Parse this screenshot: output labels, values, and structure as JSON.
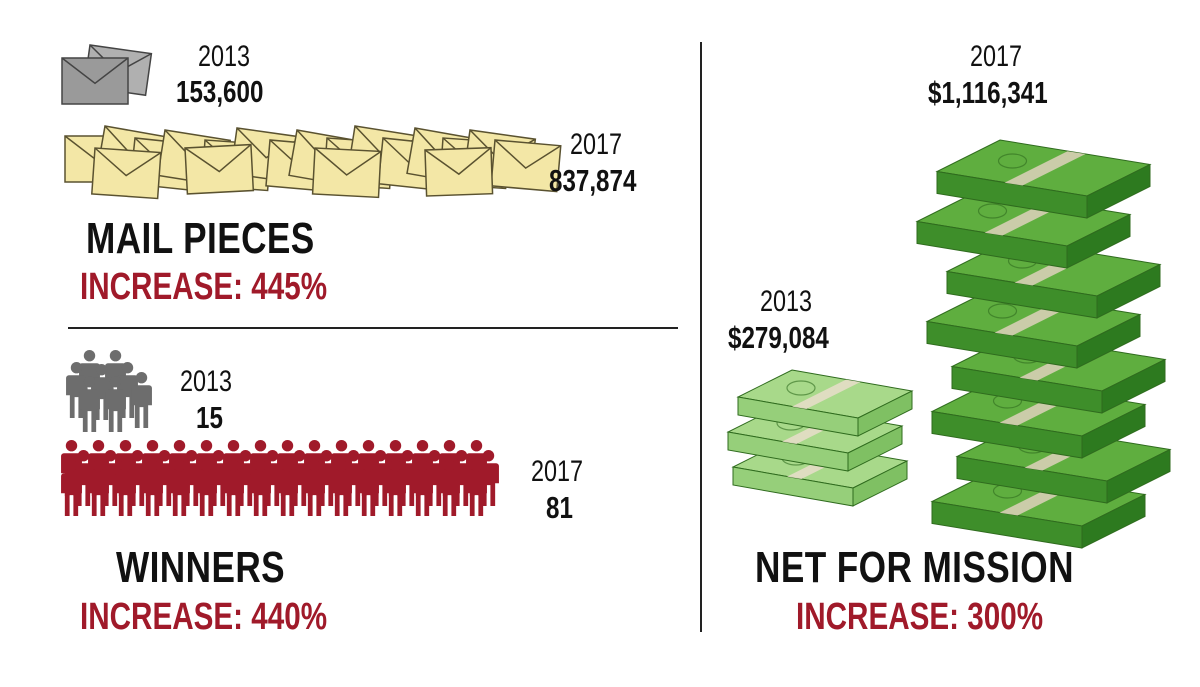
{
  "mail": {
    "year_2013": "2013",
    "value_2013": "153,600",
    "year_2017": "2017",
    "value_2017": "837,874",
    "title": "MAIL PIECES",
    "increase": "INCREASE: 445%"
  },
  "winners": {
    "year_2013": "2013",
    "value_2013": "15",
    "year_2017": "2017",
    "value_2017": "81",
    "title": "WINNERS",
    "increase": "INCREASE: 440%"
  },
  "mission": {
    "year_2013": "2013",
    "value_2013": "$279,084",
    "year_2017": "2017",
    "value_2017": "$1,116,341",
    "title": "NET FOR MISSION",
    "increase": "INCREASE: 300%"
  },
  "colors": {
    "accent_red": "#a01a2a",
    "envelope_gray": "#9a9a9a",
    "envelope_yellow": "#f3e7a6",
    "person_gray": "#6d6d6d",
    "person_red": "#a01a2a",
    "cash_green": "#5aa43a",
    "cash_light_green": "#a8d98a"
  },
  "icons": {
    "mail_2013": "envelope-icon",
    "mail_2017": "envelope-icon",
    "people_2013": "person-icon",
    "people_2017": "person-icon",
    "cash_2013": "cash-stack-icon",
    "cash_2017": "cash-stack-icon"
  }
}
